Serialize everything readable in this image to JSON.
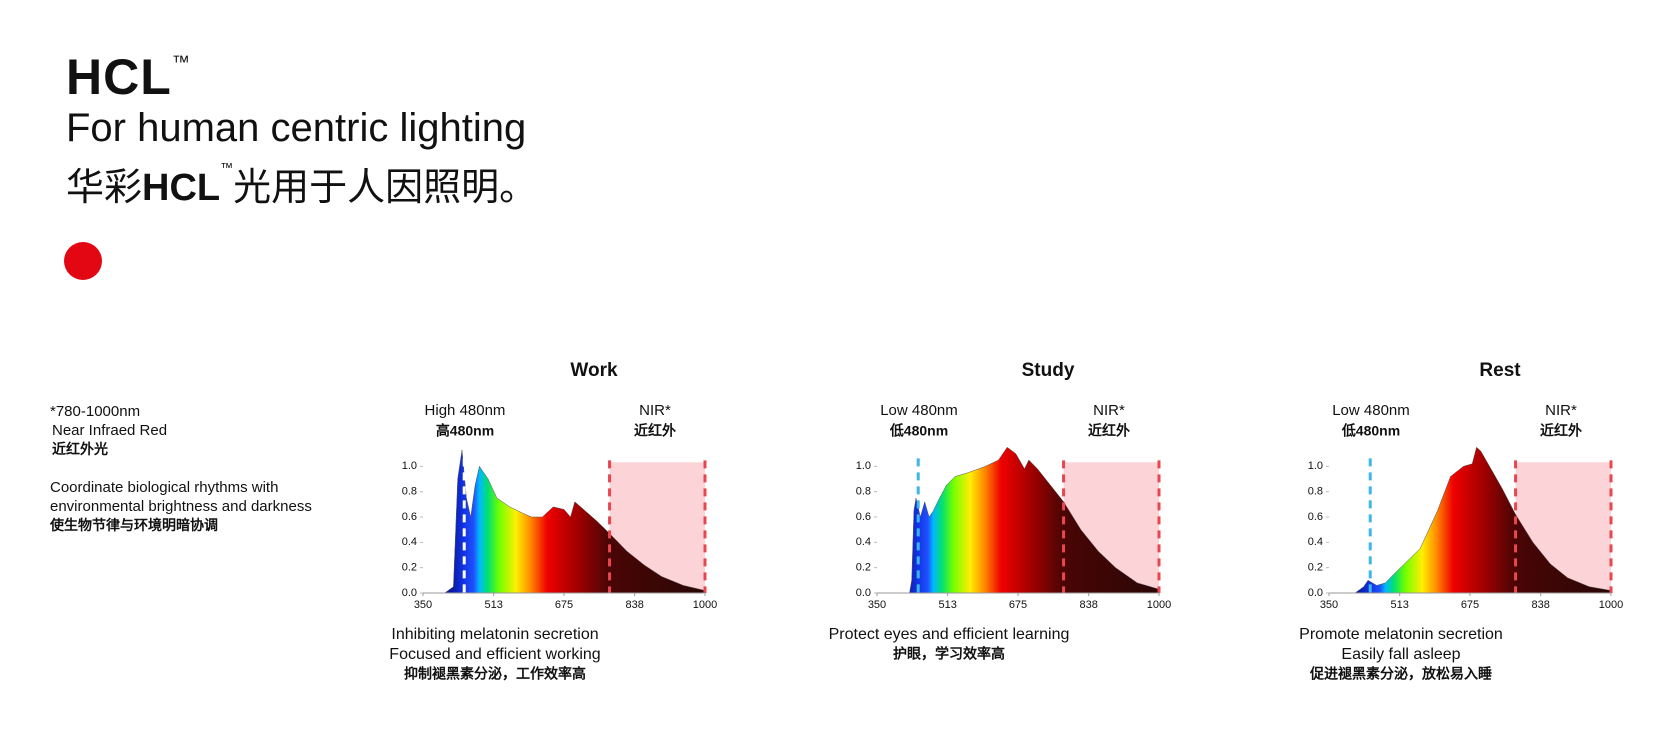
{
  "header": {
    "title": "HCL",
    "title_mark": "™",
    "subtitle": "For human centric lighting",
    "cn_prefix": "华彩",
    "cn_brand": "HCL",
    "cn_mark": "™",
    "cn_suffix": "光用于人因照明。"
  },
  "note": {
    "lines": [
      "*780-1000nm",
      "Near Infraed Red",
      "近红外光"
    ],
    "description": [
      "Coordinate biological rhythms with",
      "environmental brightness and darkness",
      "使生物节律与环境明暗协调"
    ]
  },
  "chart_data": [
    {
      "type": "area",
      "title": "Work",
      "annotation_left": [
        "High 480nm",
        "高480nm"
      ],
      "annotation_right": [
        "NIR*",
        "近红外"
      ],
      "captions": [
        "Inhibiting melatonin secretion",
        "Focused and efficient working",
        "抑制褪黑素分泌，工作效率高"
      ],
      "xlim": [
        350,
        1000
      ],
      "ylim": [
        0,
        1.2
      ],
      "xticks": [
        350,
        513,
        675,
        838,
        1000
      ],
      "yticks": [
        {
          "value": 0,
          "label": "0.0"
        },
        0.2,
        0.4,
        0.6,
        0.8,
        {
          "value": 1,
          "label": "1.0"
        }
      ],
      "marker_x": 445,
      "marker_color": "#ffffff",
      "nir": [
        780,
        1000
      ],
      "x": [
        350,
        400,
        420,
        430,
        440,
        450,
        460,
        470,
        480,
        500,
        520,
        550,
        580,
        600,
        625,
        650,
        675,
        690,
        700,
        720,
        750,
        780,
        820,
        860,
        900,
        950,
        1000
      ],
      "values": [
        0,
        0,
        0.05,
        0.9,
        1.13,
        0.75,
        0.6,
        0.85,
        1.0,
        0.9,
        0.75,
        0.68,
        0.63,
        0.6,
        0.6,
        0.68,
        0.66,
        0.6,
        0.72,
        0.66,
        0.57,
        0.47,
        0.33,
        0.22,
        0.13,
        0.06,
        0.02
      ]
    },
    {
      "type": "area",
      "title": "Study",
      "annotation_left": [
        "Low 480nm",
        "低480nm"
      ],
      "annotation_right": [
        "NIR*",
        "近红外"
      ],
      "captions": [
        "Protect eyes and efficient learning",
        "护眼，学习效率高"
      ],
      "xlim": [
        350,
        1000
      ],
      "ylim": [
        0,
        1.2
      ],
      "xticks": [
        350,
        513,
        675,
        838,
        1000
      ],
      "yticks": [
        {
          "value": 0,
          "label": "0.0"
        },
        0.2,
        0.4,
        0.6,
        0.8,
        {
          "value": 1,
          "label": "1.0"
        }
      ],
      "marker_x": 445,
      "marker_color": "#3fb4e8",
      "nir": [
        780,
        1000
      ],
      "x": [
        350,
        425,
        430,
        435,
        440,
        450,
        460,
        470,
        480,
        490,
        510,
        530,
        560,
        600,
        630,
        650,
        670,
        690,
        700,
        720,
        750,
        780,
        820,
        860,
        900,
        950,
        1000
      ],
      "values": [
        0,
        0,
        0.1,
        0.65,
        0.75,
        0.6,
        0.72,
        0.6,
        0.65,
        0.72,
        0.85,
        0.92,
        0.95,
        1.0,
        1.05,
        1.15,
        1.1,
        0.98,
        1.05,
        0.98,
        0.85,
        0.72,
        0.5,
        0.33,
        0.2,
        0.08,
        0.03
      ]
    },
    {
      "type": "area",
      "title": "Rest",
      "annotation_left": [
        "Low 480nm",
        "低480nm"
      ],
      "annotation_right": [
        "NIR*",
        "近红外"
      ],
      "captions": [
        "Promote melatonin secretion",
        "Easily fall asleep",
        "促进褪黑素分泌，放松易入睡"
      ],
      "xlim": [
        350,
        1000
      ],
      "ylim": [
        0,
        1.2
      ],
      "xticks": [
        350,
        513,
        675,
        838,
        1000
      ],
      "yticks": [
        {
          "value": 0,
          "label": "0.0"
        },
        0.2,
        0.4,
        0.6,
        0.8,
        {
          "value": 1,
          "label": "1.0"
        }
      ],
      "marker_x": 445,
      "marker_color": "#3fb4e8",
      "nir": [
        780,
        1000
      ],
      "x": [
        350,
        410,
        430,
        440,
        460,
        480,
        500,
        530,
        560,
        600,
        630,
        660,
        680,
        690,
        700,
        720,
        750,
        780,
        820,
        860,
        900,
        950,
        1000
      ],
      "values": [
        0,
        0,
        0.05,
        0.1,
        0.06,
        0.08,
        0.15,
        0.25,
        0.35,
        0.65,
        0.92,
        1.0,
        1.02,
        1.15,
        1.12,
        1.0,
        0.82,
        0.62,
        0.4,
        0.23,
        0.12,
        0.05,
        0.02
      ]
    }
  ]
}
